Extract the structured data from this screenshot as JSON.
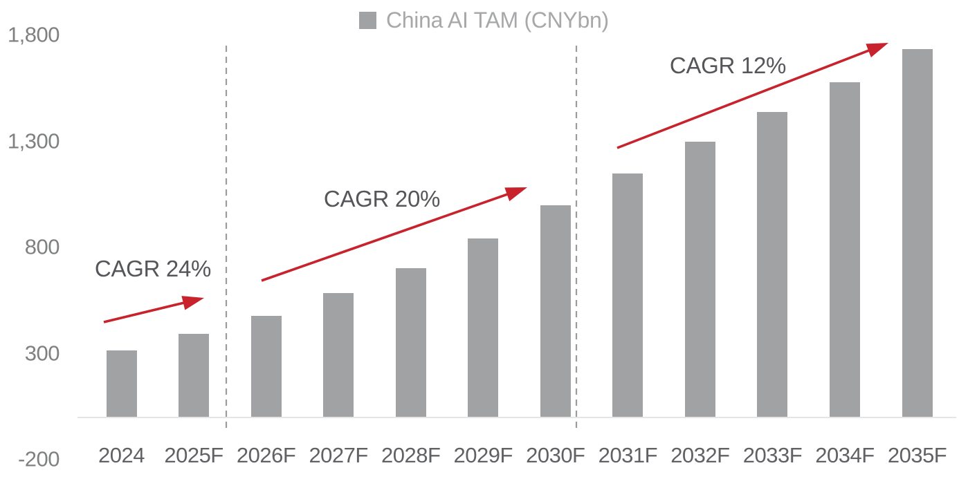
{
  "legend": {
    "label": "China AI TAM (CNYbn)"
  },
  "chart_data": {
    "type": "bar",
    "title": "China AI TAM (CNYbn)",
    "unit": "CNYbn",
    "categories": [
      "2024",
      "2025F",
      "2026F",
      "2027F",
      "2028F",
      "2029F",
      "2030F",
      "2031F",
      "2032F",
      "2033F",
      "2034F",
      "2035F"
    ],
    "values": [
      315,
      395,
      480,
      585,
      705,
      845,
      1000,
      1150,
      1300,
      1440,
      1580,
      1735
    ],
    "ylim": [
      -200,
      1800
    ],
    "y_ticks": [
      {
        "label": "1,800",
        "value": 1800
      },
      {
        "label": "1,300",
        "value": 1300
      },
      {
        "label": "800",
        "value": 800
      },
      {
        "label": "300",
        "value": 300
      },
      {
        "label": "-200",
        "value": -200
      }
    ],
    "grid": false,
    "legend_position": "top-center",
    "annotations": [
      {
        "label": "CAGR 24%",
        "from": "2024",
        "to": "2025F"
      },
      {
        "label": "CAGR 20%",
        "from": "2026F",
        "to": "2030F"
      },
      {
        "label": "CAGR 12%",
        "from": "2031F",
        "to": "2035F"
      }
    ],
    "separators_after": [
      "2025F",
      "2030F"
    ]
  },
  "colors": {
    "bar": "#a1a2a4",
    "arrow_red": "#c8232c",
    "dashed_separator": "#9b9b9b",
    "axis_line": "#e5e5e5"
  }
}
